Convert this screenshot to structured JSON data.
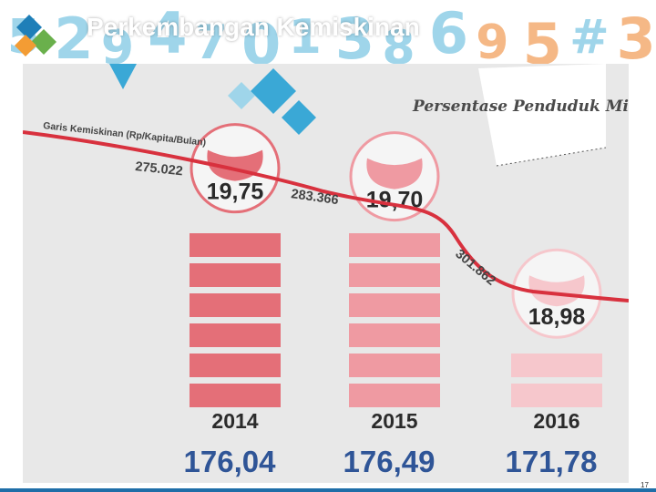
{
  "slide": {
    "title": "Perkembangan Kemiskinan",
    "page_number": "17",
    "header_digits": [
      "5",
      "2",
      "9",
      "4",
      "7",
      "0",
      "1",
      "3",
      "8",
      "6",
      "9",
      "5",
      "#",
      "3"
    ]
  },
  "colors": {
    "header_digit": "#7fc8e3",
    "header_digit_orange": "#f2a15e",
    "bar_2014": "#e46f78",
    "bar_2015": "#ef9aa2",
    "bar_2016": "#f6c7cc",
    "poverty_line": "#d8313e",
    "count_text": "#2f5597",
    "diamond_blue": "#3aa8d6"
  },
  "chart_data": {
    "type": "bar",
    "title": "Persentase Penduduk Miskin (Po)",
    "categories": [
      "2014",
      "2015",
      "2016"
    ],
    "series": [
      {
        "name": "Persentase Penduduk Miskin (Po)",
        "values": [
          19.75,
          19.7,
          18.98
        ],
        "labels": [
          "19,75",
          "19,70",
          "18,98"
        ]
      }
    ],
    "counts": [
      "176,04",
      "176,49",
      "171,78"
    ],
    "poverty_line": {
      "name": "Garis Kemiskinan (Rp/Kapita/Bulan)",
      "values": [
        275022,
        283366,
        301862
      ],
      "labels": [
        "275.022",
        "283.366",
        "301.862"
      ]
    },
    "ylim": [
      18.5,
      20
    ],
    "xlabel": "",
    "ylabel": "",
    "grid": false
  }
}
